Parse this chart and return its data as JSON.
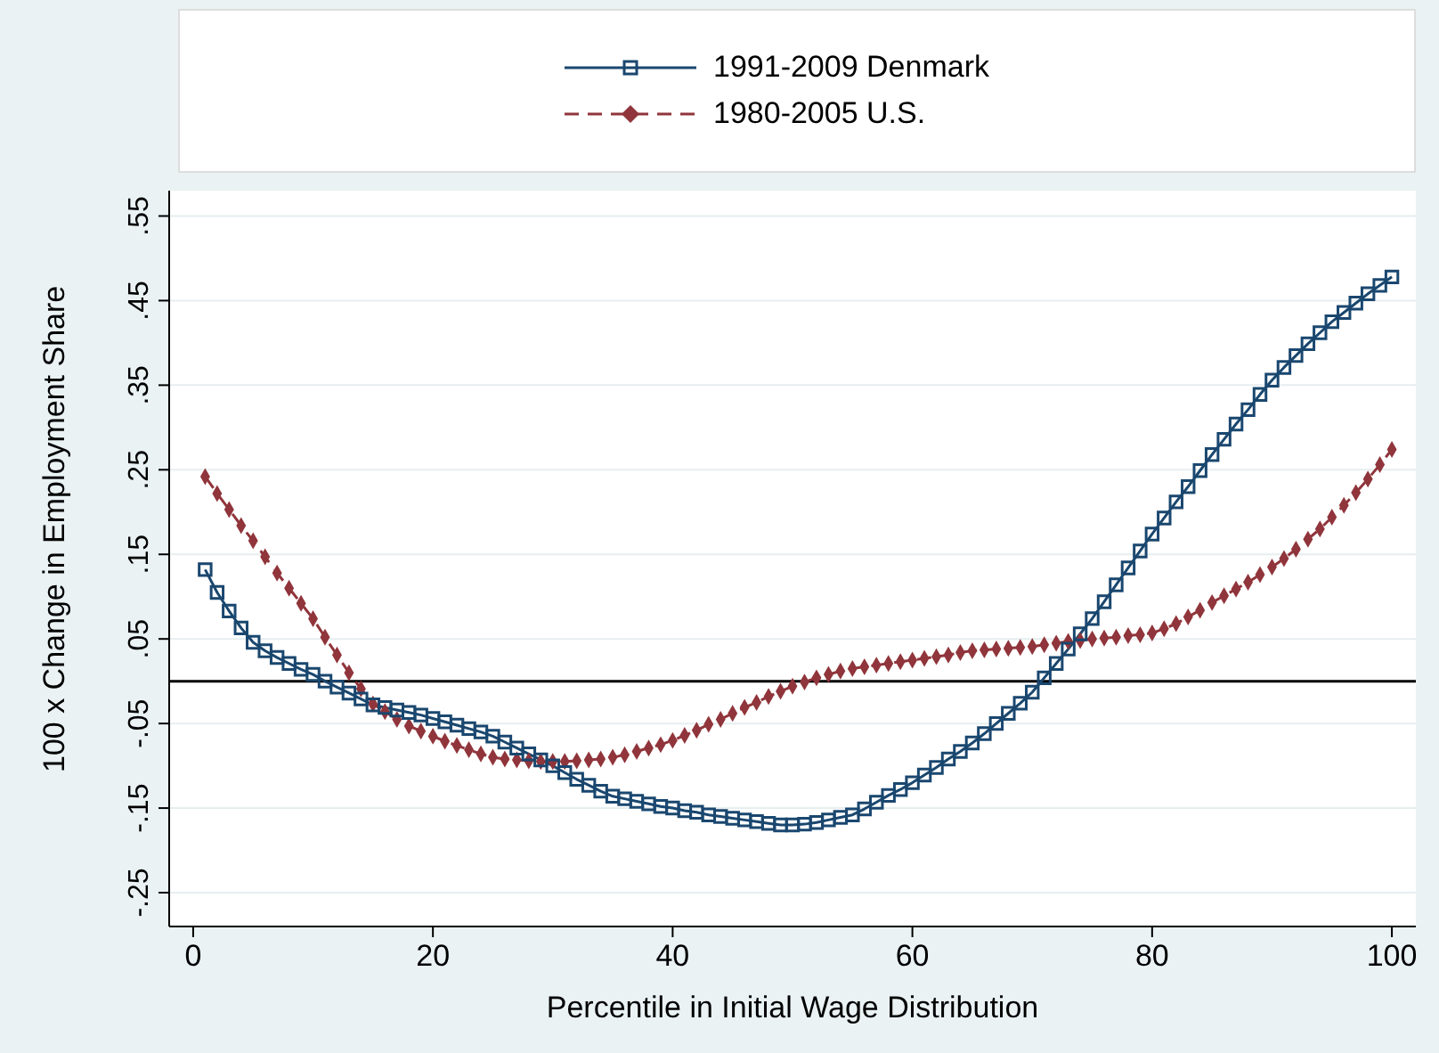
{
  "chart_data": {
    "type": "line",
    "xlabel": "Percentile in Initial Wage Distribution",
    "ylabel": "100 x Change in Employment Share",
    "x": [
      1,
      2,
      3,
      4,
      5,
      6,
      7,
      8,
      9,
      10,
      11,
      12,
      13,
      14,
      15,
      16,
      17,
      18,
      19,
      20,
      21,
      22,
      23,
      24,
      25,
      26,
      27,
      28,
      29,
      30,
      31,
      32,
      33,
      34,
      35,
      36,
      37,
      38,
      39,
      40,
      41,
      42,
      43,
      44,
      45,
      46,
      47,
      48,
      49,
      50,
      51,
      52,
      53,
      54,
      55,
      56,
      57,
      58,
      59,
      60,
      61,
      62,
      63,
      64,
      65,
      66,
      67,
      68,
      69,
      70,
      71,
      72,
      73,
      74,
      75,
      76,
      77,
      78,
      79,
      80,
      81,
      82,
      83,
      84,
      85,
      86,
      87,
      88,
      89,
      90,
      91,
      92,
      93,
      94,
      95,
      96,
      97,
      98,
      99,
      100
    ],
    "series": [
      {
        "name": "1991-2009 Denmark",
        "color": "#1a476f",
        "marker": "square",
        "line_style": "solid",
        "values": [
          0.132,
          0.105,
          0.083,
          0.063,
          0.046,
          0.036,
          0.028,
          0.021,
          0.014,
          0.008,
          0.0,
          -0.007,
          -0.014,
          -0.021,
          -0.028,
          -0.031,
          -0.034,
          -0.037,
          -0.04,
          -0.044,
          -0.048,
          -0.052,
          -0.056,
          -0.06,
          -0.065,
          -0.072,
          -0.079,
          -0.086,
          -0.093,
          -0.1,
          -0.108,
          -0.116,
          -0.123,
          -0.13,
          -0.136,
          -0.139,
          -0.142,
          -0.145,
          -0.148,
          -0.15,
          -0.153,
          -0.155,
          -0.158,
          -0.16,
          -0.162,
          -0.164,
          -0.166,
          -0.168,
          -0.17,
          -0.17,
          -0.169,
          -0.167,
          -0.164,
          -0.161,
          -0.158,
          -0.151,
          -0.143,
          -0.135,
          -0.128,
          -0.12,
          -0.111,
          -0.102,
          -0.092,
          -0.083,
          -0.073,
          -0.062,
          -0.05,
          -0.038,
          -0.026,
          -0.013,
          0.004,
          0.021,
          0.038,
          0.056,
          0.074,
          0.094,
          0.114,
          0.134,
          0.154,
          0.174,
          0.193,
          0.212,
          0.23,
          0.249,
          0.268,
          0.286,
          0.304,
          0.321,
          0.339,
          0.356,
          0.371,
          0.385,
          0.399,
          0.412,
          0.425,
          0.436,
          0.447,
          0.458,
          0.468,
          0.478
        ]
      },
      {
        "name": "1980-2005 U.S.",
        "color": "#90353b",
        "marker": "diamond",
        "line_style": "dashed",
        "values": [
          0.242,
          0.222,
          0.203,
          0.184,
          0.166,
          0.147,
          0.128,
          0.11,
          0.092,
          0.074,
          0.052,
          0.031,
          0.01,
          -0.009,
          -0.027,
          -0.036,
          -0.045,
          -0.053,
          -0.059,
          -0.065,
          -0.071,
          -0.076,
          -0.081,
          -0.086,
          -0.09,
          -0.092,
          -0.093,
          -0.094,
          -0.095,
          -0.095,
          -0.095,
          -0.094,
          -0.093,
          -0.092,
          -0.09,
          -0.087,
          -0.083,
          -0.079,
          -0.075,
          -0.07,
          -0.064,
          -0.058,
          -0.051,
          -0.045,
          -0.038,
          -0.031,
          -0.025,
          -0.018,
          -0.012,
          -0.006,
          -0.001,
          0.004,
          0.008,
          0.012,
          0.015,
          0.017,
          0.019,
          0.021,
          0.023,
          0.025,
          0.027,
          0.029,
          0.031,
          0.034,
          0.036,
          0.037,
          0.038,
          0.039,
          0.04,
          0.041,
          0.043,
          0.045,
          0.047,
          0.048,
          0.05,
          0.051,
          0.052,
          0.054,
          0.055,
          0.057,
          0.062,
          0.068,
          0.076,
          0.084,
          0.093,
          0.101,
          0.109,
          0.117,
          0.126,
          0.135,
          0.145,
          0.156,
          0.168,
          0.18,
          0.194,
          0.208,
          0.223,
          0.239,
          0.256,
          0.274
        ]
      }
    ],
    "xlim": [
      -2,
      102
    ],
    "xticks": [
      0,
      20,
      40,
      60,
      80,
      100
    ],
    "ylim": [
      -0.29,
      0.58
    ],
    "yticks": [
      {
        "value": -0.25,
        "label": "-.25"
      },
      {
        "value": -0.15,
        "label": "-.15"
      },
      {
        "value": -0.05,
        "label": "-.05"
      },
      {
        "value": 0.05,
        "label": ".05"
      },
      {
        "value": 0.15,
        "label": ".15"
      },
      {
        "value": 0.25,
        "label": ".25"
      },
      {
        "value": 0.35,
        "label": ".35"
      },
      {
        "value": 0.45,
        "label": ".45"
      },
      {
        "value": 0.55,
        "label": ".55"
      }
    ],
    "grid": "y",
    "legend": "top",
    "ref_lines": [
      {
        "axis": "y",
        "value": 0,
        "color": "#000000"
      }
    ]
  }
}
